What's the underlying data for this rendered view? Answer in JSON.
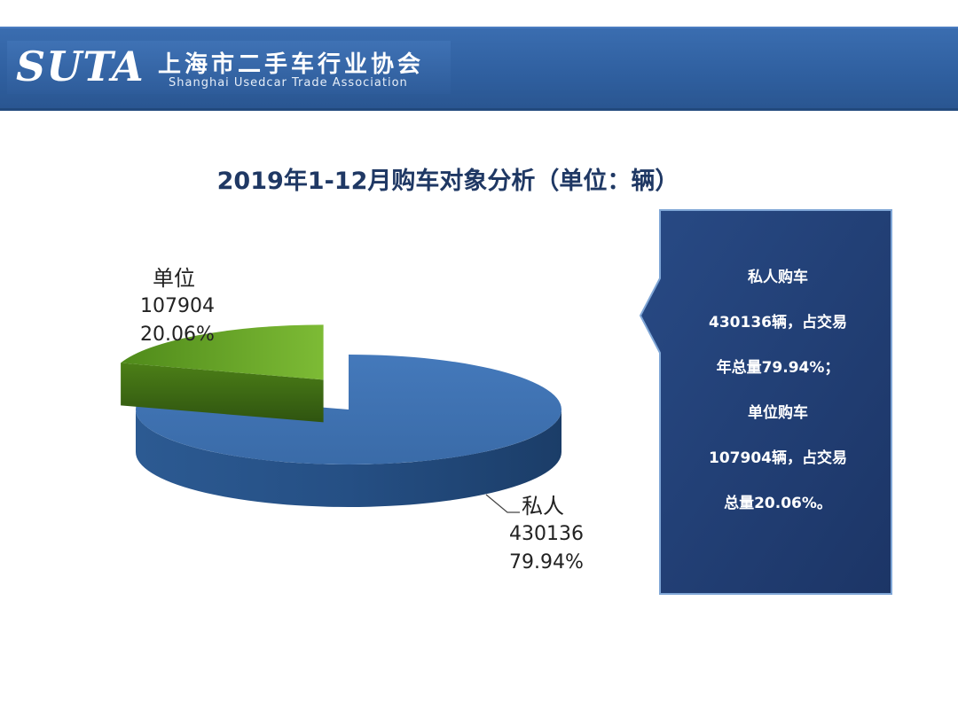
{
  "header": {
    "logo_text": "SUTA",
    "org_name_cn": "上海市二手车行业协会",
    "org_name_en": "Shanghai Usedcar Trade Association",
    "band_color": "#2f5f9f"
  },
  "chart_data": {
    "type": "pie",
    "title": "2019年1-12月购车对象分析（单位：辆）",
    "slices": [
      {
        "name": "私人",
        "value": 430136,
        "percent_label": "79.94%",
        "color": "#3c6fae"
      },
      {
        "name": "单位",
        "value": 107904,
        "percent_label": "20.06%",
        "color": "#6aa82a"
      }
    ]
  },
  "callout": {
    "lines": [
      "私人购车",
      "430136辆，占交易",
      "年总量79.94%；",
      "单位购车",
      "107904辆，占交易",
      "总量20.06%。"
    ],
    "bg_color": "#203d70"
  }
}
